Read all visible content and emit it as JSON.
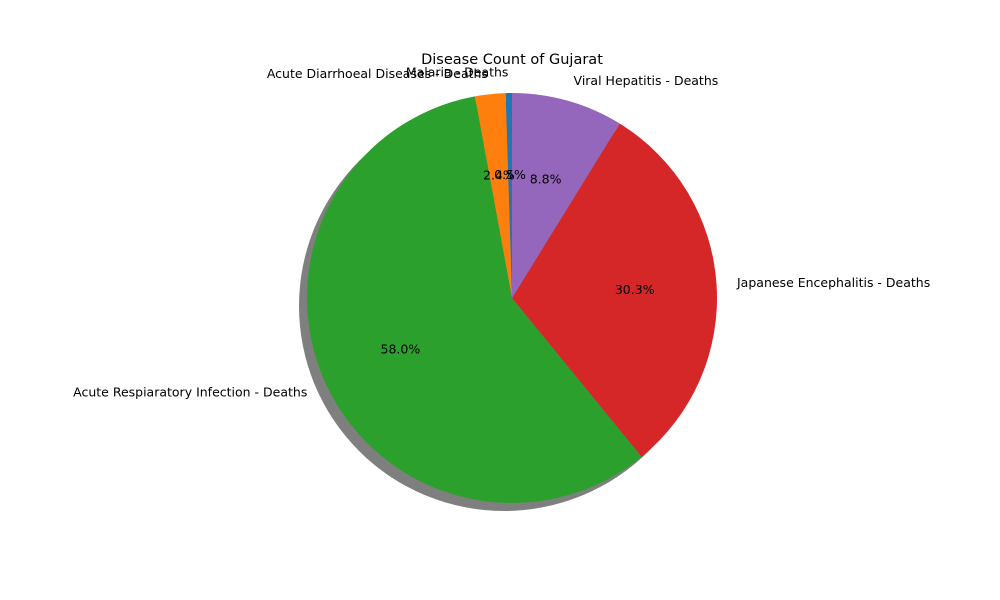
{
  "chart_data": {
    "type": "pie",
    "title": "Disease Count of Gujarat",
    "slices": [
      {
        "label": "Malaria - Deaths",
        "value": 0.5,
        "pct_label": "0.5%",
        "color": "#1f77b4"
      },
      {
        "label": "Acute Diarrhoeal Diseases - Deaths",
        "value": 2.4,
        "pct_label": "2.4%",
        "color": "#ff7f0e"
      },
      {
        "label": "Acute Respiaratory Infection - Deaths",
        "value": 58.0,
        "pct_label": "58.0%",
        "color": "#2ca02c"
      },
      {
        "label": "Japanese Encephalitis - Deaths",
        "value": 30.3,
        "pct_label": "30.3%",
        "color": "#d62728"
      },
      {
        "label": "Viral Hepatitis - Deaths",
        "value": 8.8,
        "pct_label": "8.8%",
        "color": "#9467bd"
      }
    ],
    "start_angle_deg": 90,
    "direction": "counterclockwise",
    "shadow": true
  }
}
